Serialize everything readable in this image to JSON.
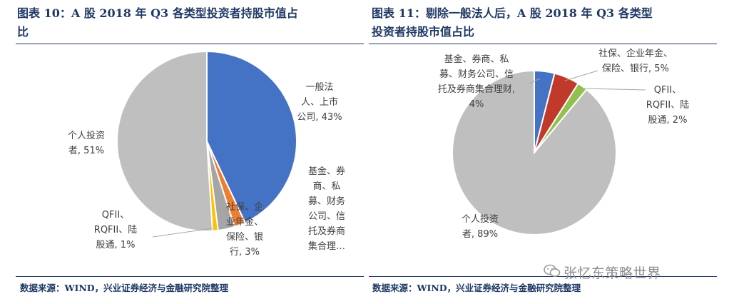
{
  "left": {
    "title": "图表 10：A 股 2018 年 Q3 各类型投资者持股市值占比",
    "title_line1": "图表 10：A 股 2018 年 Q3 各类型投资者持股市值占",
    "title_line2": "比",
    "source": "数据来源：WIND，兴业证券经济与金融研究院整理"
  },
  "right": {
    "title": "图表 11：剔除一般法人后，A 股 2018 年 Q3 各类型投资者持股市值占比",
    "title_line1": "图表 11：剔除一般法人后，A 股 2018 年 Q3 各类型",
    "title_line2": "投资者持股市值占比",
    "source": "数据来源：WIND，兴业证券经济与金融研究院整理"
  },
  "watermark": "张忆东策略世界",
  "chart_data": [
    {
      "type": "pie",
      "title": "图表 10：A 股 2018 年 Q3 各类型投资者持股市值占比",
      "slices": [
        {
          "label": "一般法人、上市公司",
          "value": 43,
          "color": "#4472c4",
          "text_lines": [
            "一般法",
            "人、上市",
            "公司, 43%"
          ]
        },
        {
          "label": "基金、券商、私募、财务公司、信托及券商集合理财",
          "value": 2,
          "color": "#ed7d31",
          "text_lines": [
            "基金、券",
            "商、私",
            "募、财务",
            "公司、信",
            "托及券商",
            "集合理…"
          ]
        },
        {
          "label": "社保、企业年金、保险、银行",
          "value": 3,
          "color": "#a5a5a5",
          "text_lines": [
            "社保、企",
            "业年金、",
            "保险、银",
            "行, 3%"
          ]
        },
        {
          "label": "QFII、RQFII、陆股通",
          "value": 1,
          "color": "#ffc000",
          "text_lines": [
            "QFII、",
            "RQFII、陆",
            "股通, 1%"
          ]
        },
        {
          "label": "个人投资者",
          "value": 51,
          "color": "#bfbfbf",
          "text_lines": [
            "个人投资",
            "者, 51%"
          ]
        }
      ]
    },
    {
      "type": "pie",
      "title": "图表 11：剔除一般法人后，A 股 2018 年 Q3 各类型投资者持股市值占比",
      "slices": [
        {
          "label": "基金、券商、私募、财务公司、信托及券商集合理财",
          "value": 4,
          "color": "#4472c4",
          "text_lines": [
            "基金、券商、私",
            "募、财务公司、信",
            "托及券商集合理财,",
            "4%"
          ]
        },
        {
          "label": "社保、企业年金、保险、银行",
          "value": 5,
          "color": "#c0392b",
          "text_lines": [
            "社保、企业年金、",
            "保险、银行, 5%"
          ]
        },
        {
          "label": "QFII、RQFII、陆股通",
          "value": 2,
          "color": "#92c050",
          "text_lines": [
            "QFII、",
            "RQFII、陆",
            "股通, 2%"
          ]
        },
        {
          "label": "个人投资者",
          "value": 89,
          "color": "#bfbfbf",
          "text_lines": [
            "个人投资",
            "者, 89%"
          ]
        }
      ]
    }
  ]
}
